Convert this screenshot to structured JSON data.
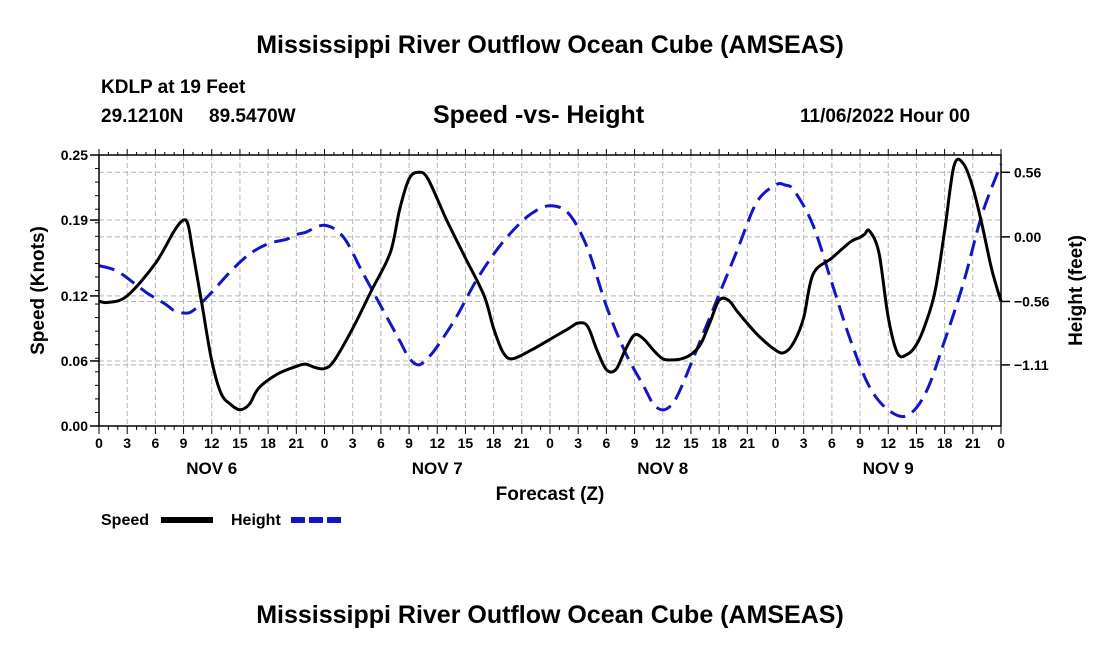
{
  "page_title": "Mississippi River Outflow Ocean Cube (AMSEAS)",
  "footer_title": "Mississippi River Outflow Ocean Cube (AMSEAS)",
  "station": {
    "name": "KDLP at 19 Feet",
    "lat": "29.1210N",
    "lon": "89.5470W"
  },
  "run_time": "11/06/2022 Hour 00",
  "colors": {
    "speed": "#000000",
    "height": "#1515c8",
    "grid": "#b4b4b4"
  },
  "chart_data": {
    "type": "line",
    "title": "Speed -vs- Height",
    "xlabel": "Forecast (Z)",
    "ylabel": "Speed (Knots)",
    "y2label": "Height (feet)",
    "x_range_hours": [
      0,
      96
    ],
    "ylim": [
      0,
      0.25
    ],
    "y2lim": [
      -1.64,
      0.71
    ],
    "yticks": [
      0.0,
      0.06,
      0.12,
      0.19,
      0.25
    ],
    "ytick_labels": [
      "0.00",
      "0.06",
      "0.12",
      "0.19",
      "0.25"
    ],
    "y2ticks": [
      -1.11,
      -0.56,
      0.0,
      0.56
    ],
    "y2tick_labels": [
      "−1.11",
      "−0.56",
      "0.00",
      "0.56"
    ],
    "x_ticks_hours": [
      0,
      3,
      6,
      9,
      12,
      15,
      18,
      21,
      24,
      27,
      30,
      33,
      36,
      39,
      42,
      45,
      48,
      51,
      54,
      57,
      60,
      63,
      66,
      69,
      72,
      75,
      78,
      81,
      84,
      87,
      90,
      93,
      96
    ],
    "x_tick_labels": [
      "0",
      "3",
      "6",
      "9",
      "12",
      "15",
      "18",
      "21",
      "0",
      "3",
      "6",
      "9",
      "12",
      "15",
      "18",
      "21",
      "0",
      "3",
      "6",
      "9",
      "12",
      "15",
      "18",
      "21",
      "0",
      "3",
      "6",
      "9",
      "12",
      "15",
      "18",
      "21",
      "0"
    ],
    "day_labels": [
      {
        "hour": 12,
        "label": "NOV 6"
      },
      {
        "hour": 36,
        "label": "NOV 7"
      },
      {
        "hour": 60,
        "label": "NOV 8"
      },
      {
        "hour": 84,
        "label": "NOV 9"
      }
    ],
    "series": [
      {
        "name": "Speed",
        "axis": "left",
        "x": [
          0,
          1,
          3,
          6,
          8,
          9,
          9.5,
          10,
          11,
          12,
          13,
          14,
          15,
          16,
          17,
          19,
          21,
          22,
          23,
          24,
          25,
          27,
          29,
          31,
          32,
          33,
          34,
          35,
          37,
          39,
          41,
          42,
          43,
          44,
          46,
          48,
          50,
          51,
          52,
          53,
          54,
          55,
          56,
          57,
          58,
          59,
          60,
          61,
          62,
          63,
          64,
          65,
          66,
          67,
          68,
          70,
          72,
          73,
          74,
          75,
          76,
          78,
          80,
          81,
          81.5,
          82,
          83,
          84,
          85,
          86,
          87,
          88,
          89,
          90,
          91,
          92,
          93,
          94,
          95,
          96
        ],
        "y": [
          0.115,
          0.114,
          0.12,
          0.15,
          0.18,
          0.19,
          0.185,
          0.16,
          0.11,
          0.06,
          0.03,
          0.02,
          0.015,
          0.02,
          0.035,
          0.048,
          0.055,
          0.057,
          0.054,
          0.053,
          0.06,
          0.09,
          0.125,
          0.16,
          0.2,
          0.228,
          0.234,
          0.228,
          0.19,
          0.155,
          0.12,
          0.09,
          0.068,
          0.062,
          0.07,
          0.08,
          0.09,
          0.095,
          0.092,
          0.07,
          0.052,
          0.052,
          0.07,
          0.084,
          0.08,
          0.07,
          0.062,
          0.061,
          0.062,
          0.066,
          0.075,
          0.095,
          0.116,
          0.116,
          0.105,
          0.085,
          0.07,
          0.068,
          0.078,
          0.1,
          0.14,
          0.155,
          0.17,
          0.174,
          0.177,
          0.18,
          0.16,
          0.1,
          0.067,
          0.066,
          0.075,
          0.095,
          0.125,
          0.18,
          0.24,
          0.242,
          0.22,
          0.185,
          0.145,
          0.115
        ]
      },
      {
        "name": "Height",
        "axis": "right",
        "x": [
          0,
          2,
          5,
          7,
          8,
          9,
          10,
          12,
          14,
          16,
          18,
          20,
          21,
          22,
          24,
          26,
          28,
          30,
          32,
          33,
          34,
          35,
          36,
          38,
          40,
          42,
          44,
          46,
          48,
          50,
          52,
          54,
          56,
          58,
          59,
          60,
          61,
          62,
          64,
          66,
          68,
          70,
          72,
          73,
          74,
          76,
          78,
          80,
          82,
          84,
          86,
          88,
          90,
          92,
          94,
          96
        ],
        "y": [
          -0.25,
          -0.3,
          -0.48,
          -0.58,
          -0.64,
          -0.66,
          -0.64,
          -0.48,
          -0.3,
          -0.15,
          -0.06,
          -0.02,
          0.02,
          0.04,
          0.1,
          0.0,
          -0.3,
          -0.6,
          -0.9,
          -1.05,
          -1.11,
          -1.05,
          -0.95,
          -0.7,
          -0.4,
          -0.15,
          0.05,
          0.2,
          0.27,
          0.2,
          -0.1,
          -0.6,
          -1.0,
          -1.3,
          -1.45,
          -1.5,
          -1.45,
          -1.3,
          -0.9,
          -0.5,
          -0.1,
          0.3,
          0.45,
          0.45,
          0.4,
          0.1,
          -0.4,
          -0.9,
          -1.3,
          -1.5,
          -1.55,
          -1.35,
          -0.9,
          -0.4,
          0.2,
          0.63
        ]
      }
    ],
    "legend": [
      {
        "label": "Speed",
        "color": "#000000",
        "dashed": false
      },
      {
        "label": "Height",
        "color": "#1515c8",
        "dashed": true
      }
    ],
    "legend_position": "bottom-left"
  }
}
